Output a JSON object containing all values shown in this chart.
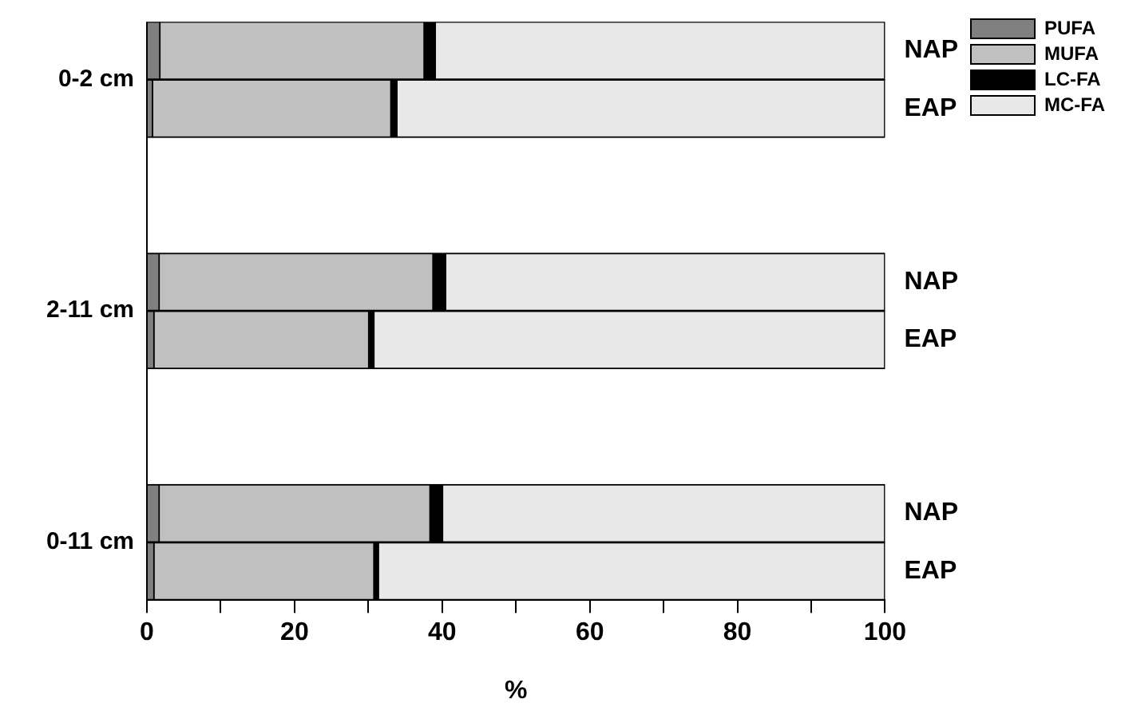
{
  "chart_data": {
    "type": "bar",
    "orientation": "horizontal",
    "stacked": true,
    "xlabel": "%",
    "categories": [
      "NAP",
      "EAP",
      null,
      null,
      "NAP",
      "EAP",
      null,
      null,
      "NAP",
      "EAP"
    ],
    "series": [
      {
        "name": "PUFA",
        "color": "#808080",
        "values": [
          1.8,
          0.8,
          null,
          null,
          1.7,
          1.0,
          null,
          null,
          1.7,
          1.0
        ]
      },
      {
        "name": "MUFA",
        "color": "#c0c0c0",
        "values": [
          35.8,
          32.3,
          null,
          null,
          37.1,
          29.1,
          null,
          null,
          36.7,
          29.8
        ]
      },
      {
        "name": "LC-FA",
        "color": "#000000",
        "values": [
          1.5,
          0.8,
          null,
          null,
          1.7,
          0.7,
          null,
          null,
          1.7,
          0.6
        ]
      },
      {
        "name": "MC-FA",
        "color": "#e8e8e8",
        "values": [
          60.9,
          66.1,
          null,
          null,
          59.5,
          69.2,
          null,
          null,
          59.9,
          68.6
        ]
      }
    ],
    "xlim": [
      0,
      100
    ],
    "xticks": [
      0,
      {
        "value": 10,
        "label": null
      },
      20,
      {
        "value": 30,
        "label": null
      },
      40,
      {
        "value": 50,
        "label": null
      },
      60,
      {
        "value": 70,
        "label": null
      },
      80,
      {
        "value": 90,
        "label": null
      },
      100
    ],
    "annotations": [
      "0-2 cm",
      "2-11 cm",
      "0-11 cm"
    ],
    "grid": false,
    "legend": "top right"
  }
}
